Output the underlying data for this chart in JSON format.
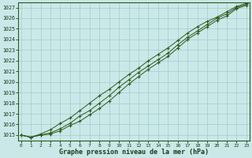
{
  "title": "Graphe pression niveau de la mer (hPa)",
  "x_labels": [
    "0",
    "1",
    "2",
    "3",
    "4",
    "5",
    "6",
    "7",
    "8",
    "9",
    "10",
    "11",
    "12",
    "13",
    "14",
    "15",
    "16",
    "17",
    "18",
    "19",
    "20",
    "21",
    "22",
    "23"
  ],
  "ylim": [
    1014.5,
    1027.5
  ],
  "yticks": [
    1015,
    1016,
    1017,
    1018,
    1019,
    1020,
    1021,
    1022,
    1023,
    1024,
    1025,
    1026,
    1027
  ],
  "series1": [
    1015.0,
    1014.8,
    1015.0,
    1015.1,
    1015.4,
    1015.9,
    1016.3,
    1016.9,
    1017.5,
    1018.2,
    1019.0,
    1019.8,
    1020.5,
    1021.2,
    1021.8,
    1022.4,
    1023.2,
    1024.0,
    1024.6,
    1025.2,
    1025.8,
    1026.2,
    1026.9,
    1027.2
  ],
  "series2": [
    1015.0,
    1014.8,
    1015.0,
    1015.2,
    1015.6,
    1016.1,
    1016.8,
    1017.3,
    1018.0,
    1018.7,
    1019.5,
    1020.2,
    1020.9,
    1021.5,
    1022.1,
    1022.7,
    1023.5,
    1024.2,
    1024.8,
    1025.4,
    1026.0,
    1026.4,
    1027.0,
    1027.3
  ],
  "series3": [
    1015.0,
    1014.8,
    1015.1,
    1015.5,
    1016.1,
    1016.6,
    1017.3,
    1018.0,
    1018.7,
    1019.3,
    1020.0,
    1020.7,
    1021.3,
    1022.0,
    1022.6,
    1023.2,
    1023.9,
    1024.6,
    1025.2,
    1025.7,
    1026.1,
    1026.6,
    1027.1,
    1027.4
  ],
  "line_color": "#2d5a1b",
  "bg_color": "#cbe8e8",
  "grid_color": "#9ecece",
  "title_color": "#1a3a1a",
  "label_color": "#1a3a1a",
  "spine_color": "#2d5a1b"
}
